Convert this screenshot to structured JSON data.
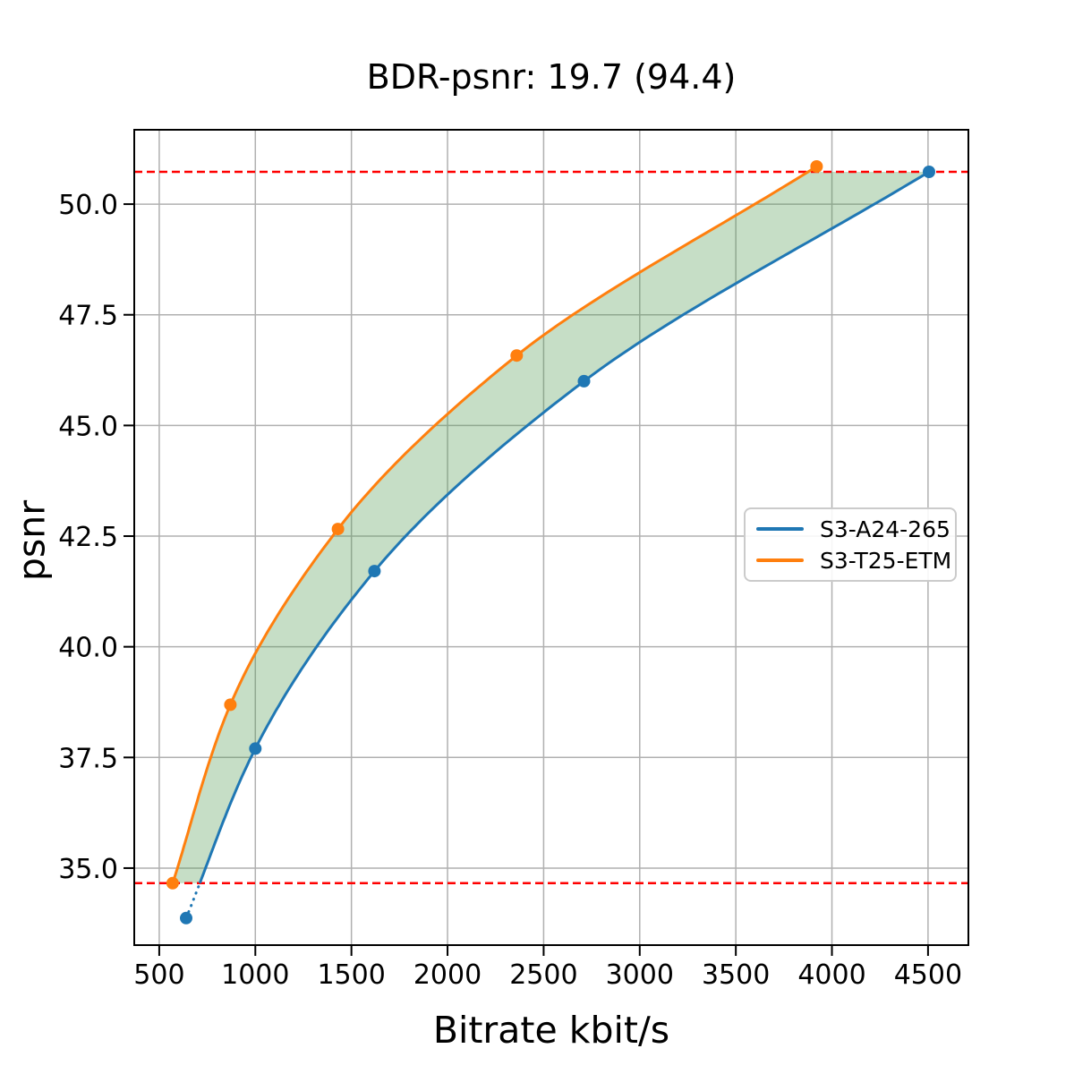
{
  "title": "BDR-psnr: 19.7 (94.4)",
  "colors": {
    "background": "#ffffff",
    "grid": "#b0b0b0",
    "spine": "#000000",
    "series_blue": "#1f77b4",
    "series_orange": "#ff7f0e",
    "overlap_line_red": "#ff0000",
    "shade_green": "#4d994d"
  },
  "chart_data": {
    "type": "line",
    "title": "BDR-psnr: 19.7 (94.4)",
    "xlabel": "Bitrate kbit/s",
    "ylabel": "psnr",
    "xlim": [
      370,
      4710
    ],
    "ylim": [
      33.26,
      51.68
    ],
    "xticks": [
      500,
      1000,
      1500,
      2000,
      2500,
      3000,
      3500,
      4000,
      4500
    ],
    "yticks": [
      35.0,
      37.5,
      40.0,
      42.5,
      45.0,
      47.5,
      50.0
    ],
    "grid": true,
    "series": [
      {
        "name": "S3-A24-265",
        "color": "#1f77b4",
        "marker": "circle",
        "x": [
          640,
          1000,
          1620,
          2710,
          4505
        ],
        "y": [
          33.87,
          37.7,
          41.71,
          46.0,
          50.73
        ]
      },
      {
        "name": "S3-T25-ETM",
        "color": "#ff7f0e",
        "marker": "circle",
        "x": [
          570,
          870,
          1430,
          2360,
          3920
        ],
        "y": [
          34.66,
          38.69,
          42.66,
          46.58,
          50.85
        ]
      }
    ],
    "overlap_hlines": {
      "values": [
        34.66,
        50.73
      ],
      "color": "#ff0000",
      "style": "dashed"
    },
    "shade_between": {
      "series": [
        "S3-T25-ETM",
        "S3-A24-265"
      ],
      "color": "#4d994d",
      "opacity": 0.32,
      "y_range": [
        34.66,
        50.73
      ]
    },
    "legend": {
      "entries": [
        "S3-A24-265",
        "S3-T25-ETM"
      ],
      "position": "center right"
    }
  }
}
